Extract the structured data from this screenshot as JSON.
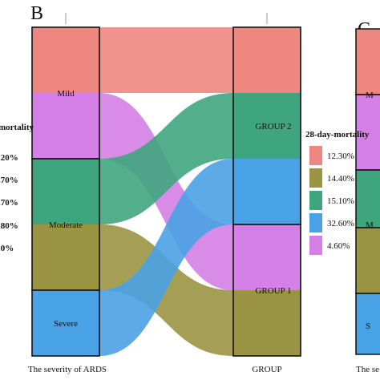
{
  "panel_labels": {
    "current": "B",
    "next": "C"
  },
  "left_clip": {
    "title_fragment": "mortality",
    "items": [
      ".20%",
      ".70%",
      ".70%",
      ".80%",
      ".0%"
    ]
  },
  "right_clip": {
    "items": [
      "M",
      "M",
      "S"
    ],
    "caption_fragment": "The se"
  },
  "colors": {
    "12.30%": "#EE877F",
    "14.40%": "#9B9442",
    "15.10%": "#3FA57E",
    "32.60%": "#4AA2E6",
    "4.60%": "#D480E6",
    "axis_stroke": "#111111",
    "background": "#ffffff"
  },
  "chart_data": {
    "type": "alluvial",
    "axes": [
      {
        "label": "The severity of ARDS",
        "strata": [
          "Mild",
          "Moderate",
          "Severe"
        ]
      },
      {
        "label": "GROUP",
        "strata": [
          "GROUP 2",
          "GROUP 1"
        ]
      }
    ],
    "legend": {
      "title": "28-day-mortality",
      "position": "right",
      "entries": [
        "12.30%",
        "14.40%",
        "15.10%",
        "32.60%",
        "4.60%"
      ]
    },
    "flows": [
      {
        "mortality": "12.30%",
        "from": "Mild",
        "to": "GROUP 2",
        "share": 20
      },
      {
        "mortality": "4.60%",
        "from": "Mild",
        "to": "GROUP 1",
        "share": 20
      },
      {
        "mortality": "15.10%",
        "from": "Moderate",
        "to": "GROUP 2",
        "share": 20
      },
      {
        "mortality": "14.40%",
        "from": "Moderate",
        "to": "GROUP 1",
        "share": 20
      },
      {
        "mortality": "32.60%",
        "from": "Severe",
        "to": "GROUP 2",
        "share": 20
      }
    ]
  }
}
